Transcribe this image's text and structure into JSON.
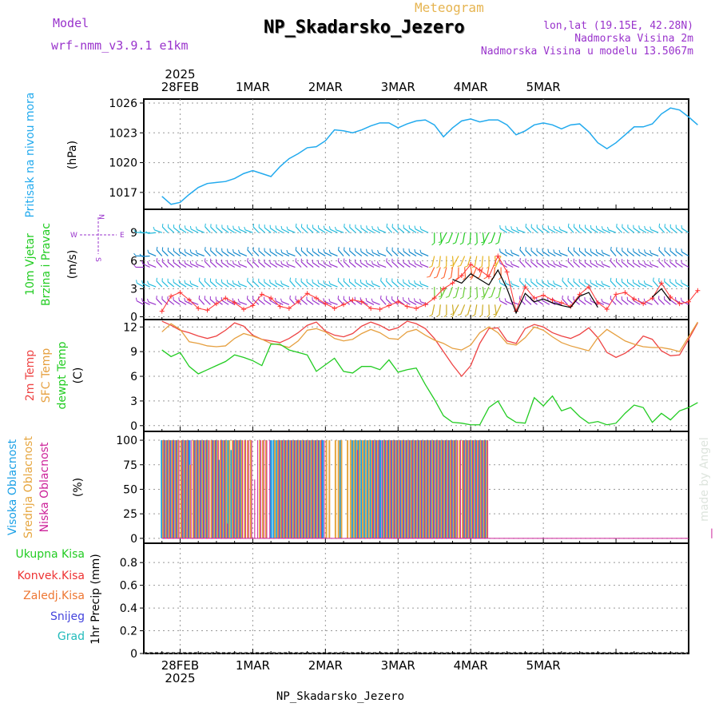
{
  "header": {
    "model_label": "Model",
    "model_name": "wrf-nmm_v3.9.1 e1km",
    "meteogram_label": "Meteogram",
    "station_title": "NP_Skadarsko_Jezero",
    "lonlat": "lon,lat (19.15E, 42.28N)",
    "elevation": "Nadmorska Visina 2m",
    "model_elevation": "Nadmorska Visina u modelu 13.5067m",
    "footer_title": "NP_Skadarsko_Jezero",
    "watermark": "made by Angel"
  },
  "colors": {
    "pressure": "#22aaee",
    "temp2m": "#ee4444",
    "sfc_temp": "#e6a040",
    "dewpoint": "#22cc22",
    "wind_speed": "#ff3333",
    "high_cloud": "#1aa0e6",
    "mid_cloud": "#e6a640",
    "low_cloud": "#cc2299",
    "title_purple": "#9933cc",
    "rain_total": "#22cc22",
    "rain_conv": "#ee3333",
    "rain_frz": "#ee7733",
    "snow": "#4444dd",
    "hail": "#22bbbb"
  },
  "chart_data": [
    {
      "id": "pressure",
      "type": "line",
      "ylabel": [
        "Pritisak na nivou mora",
        "(hPa)"
      ],
      "yticks": [
        1017,
        1020,
        1023,
        1026
      ],
      "ylim": [
        1015.3,
        1026.4
      ],
      "grid": true,
      "x_hours": [
        0,
        3,
        6,
        9,
        12,
        15,
        18,
        21,
        24,
        27,
        30,
        33,
        36,
        39,
        42,
        45,
        48,
        51,
        54,
        57,
        60,
        63,
        66,
        69,
        72,
        75,
        78,
        81,
        84,
        87,
        90,
        93,
        96,
        99,
        102,
        105,
        108,
        111,
        114,
        117,
        120,
        123,
        126,
        129,
        132,
        135,
        138,
        141,
        144,
        147,
        150,
        153,
        156,
        159,
        162,
        165,
        168,
        171,
        174,
        177
      ],
      "values": [
        1016.6,
        1015.8,
        1016.0,
        1016.8,
        1017.5,
        1017.9,
        1018.0,
        1018.1,
        1018.4,
        1018.9,
        1019.2,
        1018.9,
        1018.6,
        1019.6,
        1020.4,
        1020.9,
        1021.5,
        1021.6,
        1022.2,
        1023.3,
        1023.2,
        1023.0,
        1023.3,
        1023.7,
        1024.0,
        1024.0,
        1023.5,
        1023.9,
        1024.2,
        1024.3,
        1023.8,
        1022.6,
        1023.5,
        1024.2,
        1024.4,
        1024.1,
        1024.3,
        1024.3,
        1023.8,
        1022.8,
        1023.2,
        1023.8,
        1024.0,
        1023.8,
        1023.4,
        1023.8,
        1023.9,
        1023.1,
        1022.0,
        1021.4,
        1022.0,
        1022.8,
        1023.6,
        1023.6,
        1023.9,
        1024.9,
        1025.5,
        1025.3,
        1024.6,
        1023.8
      ]
    },
    {
      "id": "wind",
      "type": "line",
      "ylabel": [
        "10m Vjetar",
        "Brzina i Pravac",
        "(m/s)"
      ],
      "direction_legend": [
        "N",
        "W",
        "E",
        "S"
      ],
      "yticks": [
        0,
        3,
        6,
        9
      ],
      "ylim": [
        -0.3,
        11.5
      ],
      "grid": true,
      "x_hours": [
        0,
        3,
        6,
        9,
        12,
        15,
        18,
        21,
        24,
        27,
        30,
        33,
        36,
        39,
        42,
        45,
        48,
        51,
        54,
        57,
        60,
        63,
        66,
        69,
        72,
        75,
        78,
        81,
        84,
        87,
        90,
        93,
        96,
        99,
        102,
        105,
        108,
        111,
        114,
        117,
        120,
        123,
        126,
        129,
        132,
        135,
        138,
        141,
        144,
        147,
        150,
        153,
        156,
        159,
        162,
        165,
        168,
        171,
        174,
        177
      ],
      "series": [
        {
          "name": "speed",
          "values": [
            0.6,
            2.2,
            2.6,
            1.8,
            0.9,
            0.7,
            1.4,
            2.0,
            1.5,
            0.8,
            1.2,
            2.4,
            2.0,
            1.1,
            0.9,
            1.6,
            2.5,
            2.0,
            1.4,
            0.9,
            1.3,
            1.8,
            1.6,
            0.9,
            0.8,
            1.2,
            1.6,
            1.1,
            0.9,
            1.3,
            2.0,
            3.0,
            3.6,
            4.4,
            5.6,
            5.0,
            4.3,
            6.5,
            4.8,
            0.6,
            3.2,
            2.0,
            2.3,
            1.8,
            1.5,
            1.1,
            2.4,
            3.2,
            1.5,
            0.8,
            2.4,
            2.6,
            1.9,
            1.4,
            2.0,
            3.6,
            2.1,
            1.4,
            1.6,
            2.8
          ]
        },
        {
          "name": "speed_mean",
          "values": [
            null,
            null,
            null,
            null,
            null,
            null,
            null,
            null,
            null,
            null,
            null,
            null,
            null,
            null,
            null,
            null,
            null,
            null,
            null,
            null,
            null,
            null,
            null,
            null,
            null,
            null,
            null,
            null,
            null,
            null,
            null,
            null,
            4.0,
            3.6,
            4.6,
            4.0,
            3.4,
            5.0,
            3.0,
            0.4,
            2.5,
            1.6,
            1.9,
            1.5,
            1.2,
            1.0,
            2.2,
            2.6,
            1.0,
            null,
            null,
            null,
            null,
            null,
            2.1,
            3.0,
            1.7,
            null,
            null,
            null
          ]
        }
      ]
    },
    {
      "id": "temperature",
      "type": "line",
      "ylabel": [
        "2m Temp",
        "SFC Temp",
        "dewpt Temp",
        "(C)"
      ],
      "yticks": [
        0,
        3,
        6,
        9,
        12
      ],
      "ylim": [
        -0.7,
        12.9
      ],
      "grid": true,
      "x_hours": [
        0,
        3,
        6,
        9,
        12,
        15,
        18,
        21,
        24,
        27,
        30,
        33,
        36,
        39,
        42,
        45,
        48,
        51,
        54,
        57,
        60,
        63,
        66,
        69,
        72,
        75,
        78,
        81,
        84,
        87,
        90,
        93,
        96,
        99,
        102,
        105,
        108,
        111,
        114,
        117,
        120,
        123,
        126,
        129,
        132,
        135,
        138,
        141,
        144,
        147,
        150,
        153,
        156,
        159,
        162,
        165,
        168,
        171,
        174,
        177
      ],
      "series": [
        {
          "name": "2m Temp",
          "values": [
            12.7,
            12.2,
            11.6,
            11.3,
            10.9,
            10.6,
            10.9,
            11.6,
            12.5,
            12.1,
            11.0,
            10.5,
            10.3,
            10.1,
            10.6,
            11.3,
            12.2,
            12.6,
            11.5,
            11.0,
            10.8,
            11.2,
            12.1,
            12.6,
            12.2,
            11.6,
            11.9,
            12.7,
            12.4,
            11.8,
            10.6,
            9.0,
            7.4,
            6.0,
            7.3,
            10.0,
            11.8,
            11.9,
            10.3,
            10.0,
            11.8,
            12.3,
            12.0,
            11.3,
            10.9,
            10.6,
            11.1,
            11.9,
            10.7,
            8.9,
            8.3,
            8.8,
            9.6,
            10.9,
            10.5,
            9.1,
            8.5,
            8.6,
            10.5,
            12.5
          ]
        },
        {
          "name": "SFC Temp",
          "values": [
            11.4,
            12.4,
            11.7,
            10.2,
            10.0,
            9.7,
            9.6,
            9.7,
            10.6,
            11.2,
            10.9,
            10.5,
            10.0,
            9.8,
            9.5,
            10.3,
            11.6,
            11.8,
            11.4,
            10.6,
            10.3,
            10.5,
            11.2,
            11.7,
            11.3,
            10.6,
            10.5,
            11.4,
            11.7,
            11.0,
            10.4,
            10.0,
            9.4,
            9.2,
            9.8,
            11.3,
            12.0,
            11.3,
            10.0,
            9.8,
            10.7,
            12.0,
            11.6,
            10.8,
            10.1,
            9.7,
            9.4,
            9.1,
            10.7,
            11.7,
            11.0,
            10.3,
            9.9,
            9.6,
            9.5,
            9.5,
            9.3,
            9.0,
            10.8,
            12.6
          ]
        },
        {
          "name": "dewpt Temp",
          "values": [
            9.2,
            8.4,
            8.9,
            7.2,
            6.3,
            6.8,
            7.3,
            7.8,
            8.6,
            8.3,
            7.9,
            7.3,
            9.9,
            9.9,
            9.2,
            8.9,
            8.6,
            6.6,
            7.4,
            8.2,
            6.6,
            6.4,
            7.2,
            7.2,
            6.8,
            8.0,
            6.5,
            6.8,
            7.0,
            5.0,
            3.2,
            1.2,
            0.4,
            0.3,
            0.1,
            0.1,
            2.2,
            3.0,
            1.1,
            0.4,
            0.3,
            3.4,
            2.4,
            3.6,
            1.8,
            2.2,
            1.1,
            0.3,
            0.5,
            0.1,
            0.3,
            1.5,
            2.5,
            2.2,
            0.4,
            1.5,
            0.7,
            1.8,
            2.2,
            2.8
          ]
        }
      ]
    },
    {
      "id": "clouds",
      "type": "bar",
      "ylabel": [
        "Visoka Oblacnost",
        "Srednja Oblacnost",
        "Niska Oblacnost",
        "(%)"
      ],
      "yticks": [
        0,
        25,
        50,
        75,
        100
      ],
      "ylim": [
        -5,
        109
      ],
      "grid": true,
      "x_hours_start": 0,
      "x_hours_step": 1,
      "series": [
        {
          "name": "Visoka Oblacnost",
          "values": [
            100,
            100,
            100,
            100,
            100,
            100,
            0,
            100,
            100,
            100,
            0,
            100,
            100,
            100,
            100,
            100,
            0,
            100,
            100,
            80,
            100,
            100,
            100,
            90,
            100,
            100,
            100,
            0,
            0,
            0,
            0,
            0,
            0,
            0,
            0,
            0,
            100,
            100,
            100,
            100,
            100,
            100,
            100,
            100,
            100,
            100,
            100,
            100,
            100,
            100,
            100,
            100,
            100,
            100,
            0,
            0,
            0,
            0,
            0,
            100,
            0,
            0,
            0,
            100,
            100,
            100,
            100,
            100,
            100,
            100,
            100,
            100,
            100,
            100,
            100,
            100,
            100,
            100,
            100,
            100,
            100,
            100,
            100,
            100,
            100,
            100,
            100,
            100,
            100,
            100,
            100,
            100,
            100,
            100,
            100,
            100,
            100,
            100,
            0,
            0,
            100,
            100,
            100,
            100,
            100,
            100,
            100,
            100
          ]
        },
        {
          "name": "Srednja Oblacnost",
          "values": [
            100,
            100,
            100,
            100,
            100,
            100,
            100,
            100,
            100,
            75,
            100,
            100,
            100,
            100,
            100,
            100,
            100,
            100,
            100,
            100,
            100,
            100,
            100,
            100,
            100,
            100,
            100,
            100,
            100,
            100,
            0,
            0,
            100,
            100,
            100,
            0,
            0,
            100,
            100,
            100,
            100,
            100,
            100,
            100,
            100,
            100,
            100,
            100,
            100,
            100,
            100,
            100,
            100,
            0,
            100,
            100,
            0,
            100,
            100,
            100,
            0,
            100,
            100,
            100,
            100,
            100,
            100,
            100,
            100,
            100,
            100,
            100,
            0,
            100,
            100,
            100,
            100,
            100,
            100,
            100,
            100,
            100,
            100,
            100,
            100,
            100,
            100,
            100,
            100,
            100,
            100,
            100,
            100,
            100,
            100,
            100,
            100,
            100,
            100,
            100,
            100,
            100,
            100,
            100,
            100,
            100,
            100,
            100
          ]
        },
        {
          "name": "Niska Oblacnost",
          "values": [
            100,
            100,
            100,
            100,
            100,
            100,
            100,
            100,
            100,
            100,
            100,
            100,
            100,
            100,
            100,
            100,
            100,
            100,
            100,
            100,
            100,
            15,
            0,
            100,
            100,
            100,
            100,
            100,
            100,
            100,
            60,
            100,
            100,
            100,
            100,
            100,
            0,
            0,
            100,
            100,
            100,
            100,
            100,
            100,
            100,
            100,
            100,
            100,
            100,
            100,
            100,
            100,
            100,
            100,
            0,
            0,
            0,
            0,
            0,
            0,
            0,
            0,
            0,
            0,
            90,
            0,
            0,
            0,
            0,
            100,
            100,
            100,
            100,
            100,
            100,
            100,
            100,
            100,
            100,
            100,
            100,
            100,
            100,
            100,
            100,
            100,
            100,
            100,
            100,
            100,
            100,
            100,
            100,
            100,
            100,
            100,
            100,
            100,
            100,
            100,
            100,
            100,
            100,
            100,
            100,
            100,
            100,
            100,
            0,
            0,
            0,
            0,
            0,
            0,
            0,
            0,
            0,
            0,
            0,
            0,
            0,
            0,
            0,
            0,
            0,
            0,
            0,
            0,
            0,
            0,
            0,
            0,
            0,
            0,
            0,
            0,
            0,
            0,
            0,
            0,
            0,
            0,
            0,
            0,
            0,
            0,
            0,
            0,
            0,
            0,
            0,
            0,
            0,
            0,
            0,
            0,
            0,
            0,
            0,
            0,
            0,
            0,
            0,
            0,
            0,
            0,
            0,
            0,
            0,
            0,
            0,
            0,
            0,
            0,
            0,
            0,
            0,
            0,
            0,
            0,
            0,
            10
          ]
        }
      ]
    },
    {
      "id": "precip",
      "type": "bar",
      "ylabel": [
        "1hr Precip (mm)"
      ],
      "legend": [
        "Ukupna Kisa",
        "Konvek.Kisa",
        "Zaledj.Kisa",
        "Snijeg",
        "Grad"
      ],
      "yticks": [
        0,
        0.2,
        0.4,
        0.6,
        0.8
      ],
      "ylim": [
        0,
        0.97
      ],
      "grid": true,
      "values": []
    }
  ],
  "x_axis": {
    "start_hour_offset": -6,
    "hours_total": 180,
    "day_labels": [
      "28FEB",
      "1MAR",
      "2MAR",
      "3MAR",
      "4MAR",
      "5MAR"
    ],
    "day_hours": [
      6,
      30,
      54,
      78,
      102,
      126
    ],
    "year_label": "2025"
  }
}
